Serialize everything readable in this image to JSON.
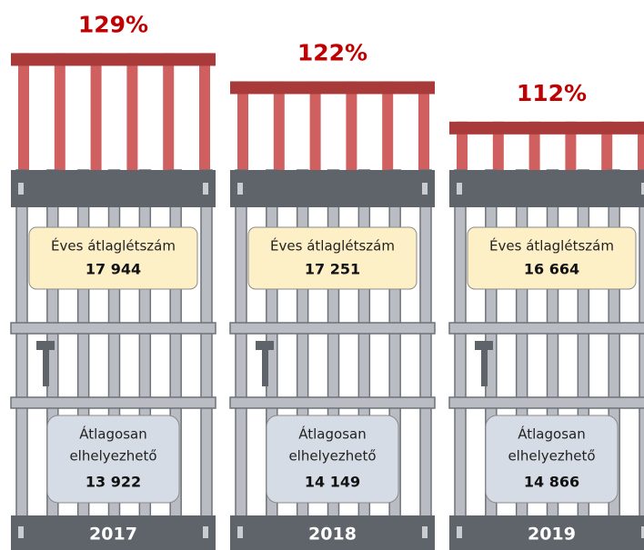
{
  "chart_data": {
    "type": "bar",
    "categories": [
      "2017",
      "2018",
      "2019"
    ],
    "ylim": [
      100,
      130
    ],
    "occupancy": {
      "values": [
        129,
        122,
        112
      ],
      "value_labels": [
        "129%",
        "122%",
        "112%"
      ],
      "color": "#d0605f"
    },
    "average_population": {
      "label": "Éves átlaglétszám",
      "values": [
        17944,
        17251,
        16664
      ],
      "value_labels": [
        "17 944",
        "17 251",
        "16 664"
      ]
    },
    "capacity": {
      "label_lines": [
        "Átlagosan",
        "elhelyezhető"
      ],
      "values": [
        13922,
        14149,
        14866
      ],
      "value_labels": [
        "13 922",
        "14 149",
        "14 866"
      ]
    }
  }
}
